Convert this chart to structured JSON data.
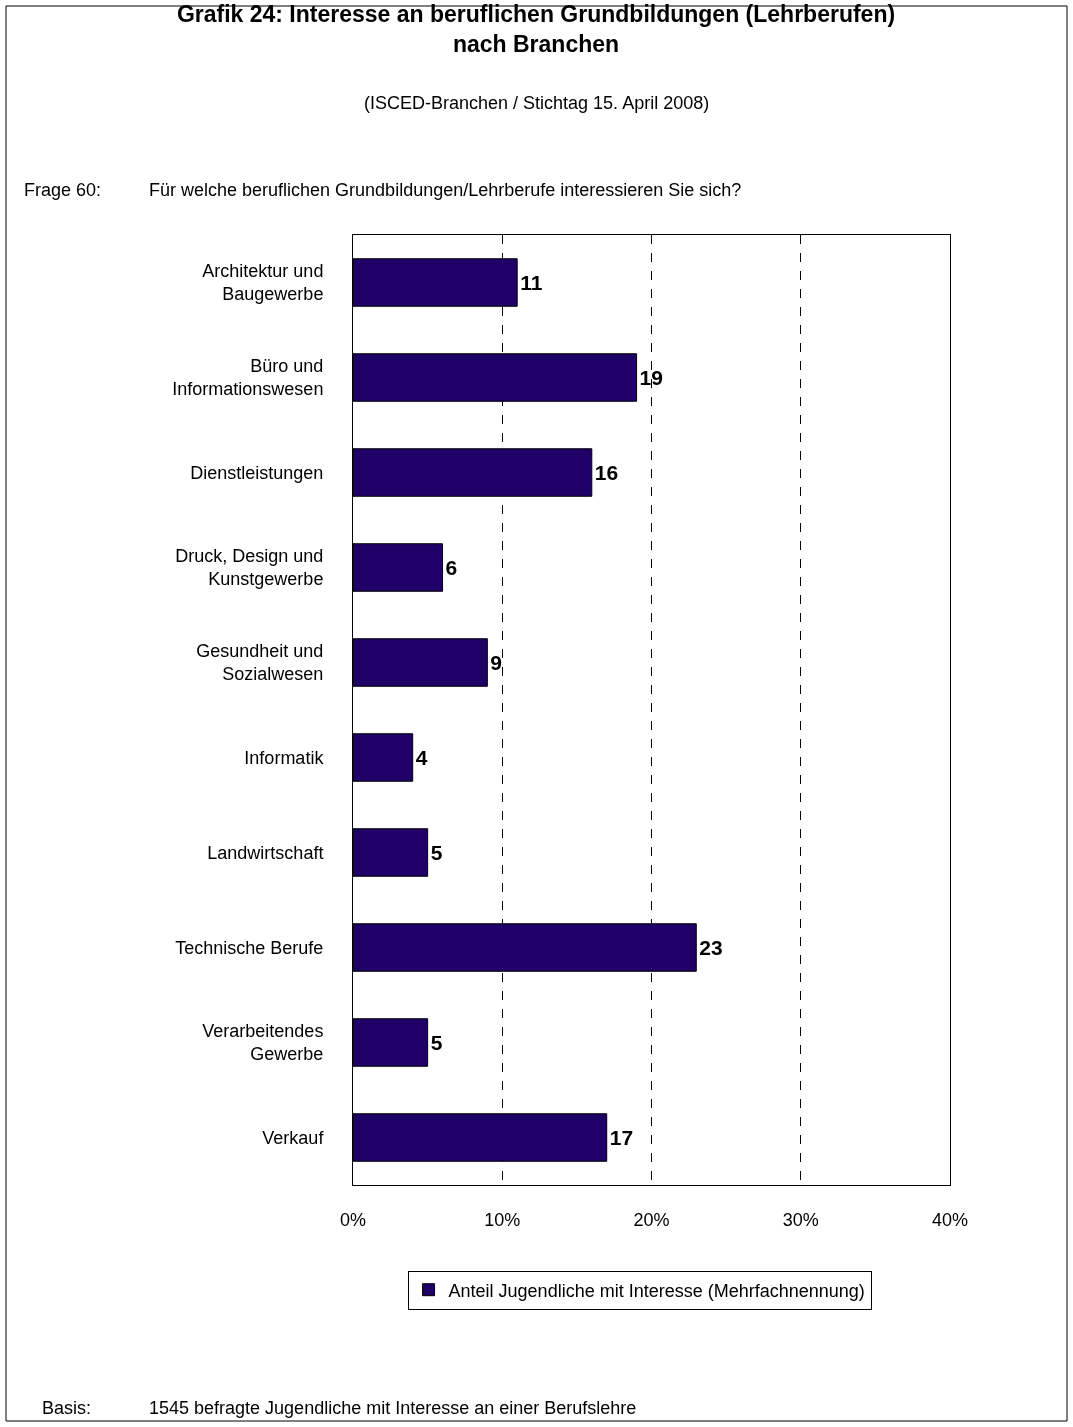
{
  "chart_data": {
    "type": "bar",
    "orientation": "horizontal",
    "title": "Grafik 24: Interesse an beruflichen Grundbildungen (Lehrberufen) nach Branchen",
    "subtitle": "(ISCED-Branchen / Stichtag 15. April 2008)",
    "categories": [
      "Architektur und Baugewerbe",
      "Büro und Informationswesen",
      "Dienstleistungen",
      "Druck, Design und Kunstgewerbe",
      "Gesundheit und Sozialwesen",
      "Informatik",
      "Landwirtschaft",
      "Technische Berufe",
      "Verarbeitendes Gewerbe",
      "Verkauf"
    ],
    "series": [
      {
        "name": "Anteil Jugendliche mit Interesse (Mehrfachnennung)",
        "color": "#1f0066",
        "values": [
          11,
          19,
          16,
          6,
          9,
          4,
          5,
          23,
          5,
          17
        ]
      }
    ],
    "xlim": [
      0,
      40
    ],
    "xticks": [
      {
        "value": 0,
        "label": "0%"
      },
      {
        "value": 10,
        "label": "10%"
      },
      {
        "value": 20,
        "label": "20%"
      },
      {
        "value": 30,
        "label": "30%"
      },
      {
        "value": 40,
        "label": "40%"
      }
    ],
    "grid": "x",
    "legend": "bottom",
    "data_labels": true,
    "annotations": [
      "Frage 60:",
      "Für welche beruflichen Grundbildungen/Lehrberufe interessieren Sie sich?",
      "Basis:",
      "1545 befragte Jugendliche mit Interesse an einer Berufslehre"
    ]
  }
}
